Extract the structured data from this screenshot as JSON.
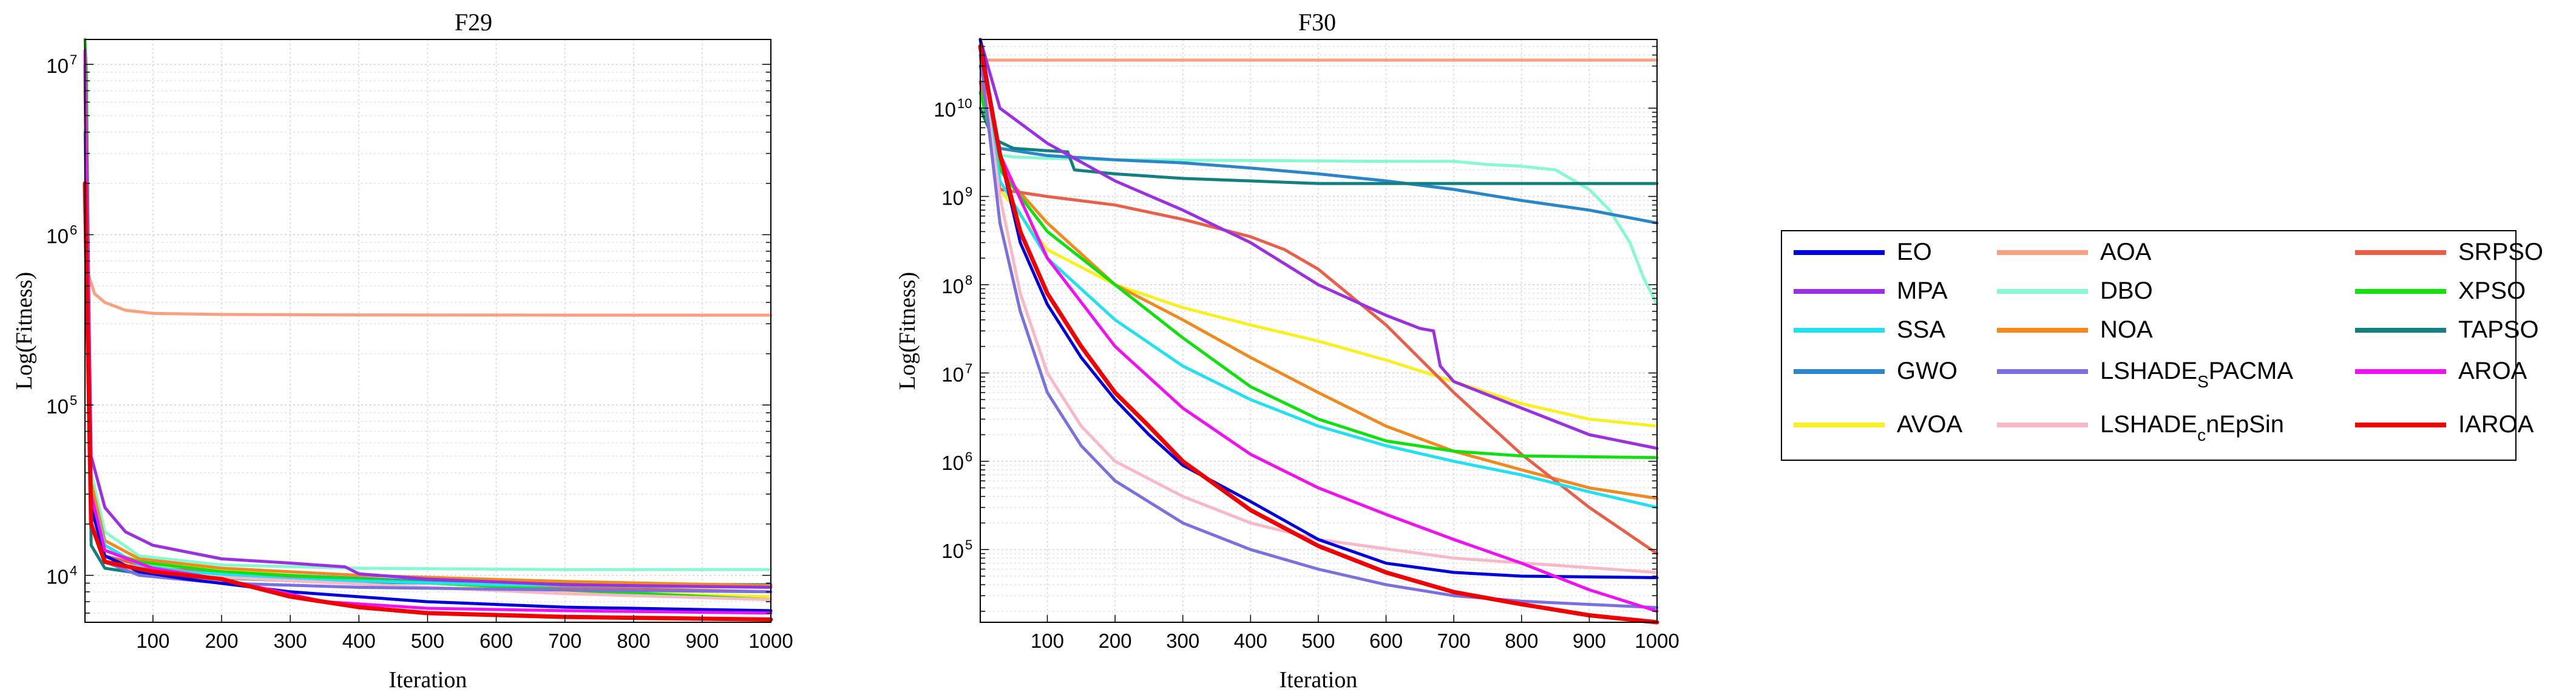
{
  "legend": {
    "entries": [
      {
        "name": "EO",
        "color": "#0000dd"
      },
      {
        "name": "MPA",
        "color": "#9b30e0"
      },
      {
        "name": "SSA",
        "color": "#22e0f0"
      },
      {
        "name": "GWO",
        "color": "#2a86c8"
      },
      {
        "name": "AVOA",
        "color": "#f8f020"
      },
      {
        "name": "AOA",
        "color": "#f8a080"
      },
      {
        "name": "DBO",
        "color": "#88f8d0"
      },
      {
        "name": "NOA",
        "color": "#f08a20"
      },
      {
        "name": "LSHADE",
        "sub": "S",
        "suffix": "PACMA",
        "color": "#7a70e0"
      },
      {
        "name": "LSHADE",
        "sub": "c",
        "suffix": "nEpSin",
        "color": "#f8b8c8"
      },
      {
        "name": "SRPSO",
        "color": "#e8604a"
      },
      {
        "name": "XPSO",
        "color": "#10e010"
      },
      {
        "name": "TAPSO",
        "color": "#128080"
      },
      {
        "name": "AROA",
        "color": "#f010f0"
      },
      {
        "name": "IAROA",
        "color": "#f00000"
      }
    ]
  },
  "chart_data": [
    {
      "type": "line",
      "title": "F29",
      "xlabel": "Iteration",
      "ylabel": "Log(Fitness)",
      "yscale": "log",
      "xlim": [
        1,
        1000
      ],
      "ylim": [
        5300,
        14000000
      ],
      "grid": true,
      "x_ticks": [
        100,
        200,
        300,
        400,
        500,
        600,
        700,
        800,
        900,
        1000
      ],
      "y_ticks": [
        {
          "value": 10000,
          "label": "10",
          "exp": "4"
        },
        {
          "value": 100000,
          "label": "10",
          "exp": "5"
        },
        {
          "value": 1000000,
          "label": "10",
          "exp": "6"
        },
        {
          "value": 10000000,
          "label": "10",
          "exp": "7"
        }
      ],
      "series": [
        {
          "name": "EO",
          "x": [
            1,
            10,
            30,
            80,
            150,
            300,
            500,
            700,
            1000
          ],
          "y": [
            10000000,
            25000,
            13000,
            10500,
            9500,
            8000,
            7000,
            6500,
            6200
          ]
        },
        {
          "name": "MPA",
          "x": [
            1,
            10,
            30,
            60,
            100,
            200,
            300,
            380,
            400,
            500,
            700,
            1000
          ],
          "y": [
            12000000,
            50000,
            25000,
            18000,
            15000,
            12500,
            11800,
            11200,
            10200,
            9500,
            8800,
            8500
          ]
        },
        {
          "name": "SSA",
          "x": [
            1,
            10,
            30,
            80,
            150,
            300,
            600,
            1000
          ],
          "y": [
            9000000,
            30000,
            15000,
            11500,
            10500,
            9500,
            8800,
            8500
          ]
        },
        {
          "name": "GWO",
          "x": [
            1,
            10,
            30,
            100,
            300,
            500,
            700,
            1000
          ],
          "y": [
            9000000,
            25000,
            13000,
            11000,
            10000,
            9200,
            8800,
            8600
          ]
        },
        {
          "name": "AVOA",
          "x": [
            1,
            10,
            30,
            100,
            300,
            500,
            700,
            1000
          ],
          "y": [
            8000000,
            30000,
            14000,
            11500,
            10000,
            9000,
            8000,
            7500
          ]
        },
        {
          "name": "AOA",
          "x": [
            1,
            5,
            15,
            30,
            60,
            100,
            200,
            400,
            700,
            1000
          ],
          "y": [
            11000000,
            600000,
            450000,
            400000,
            360000,
            345000,
            340000,
            338000,
            337000,
            337000
          ]
        },
        {
          "name": "DBO",
          "x": [
            1,
            10,
            30,
            80,
            200,
            400,
            700,
            1000
          ],
          "y": [
            12000000,
            40000,
            18000,
            13000,
            11500,
            11000,
            10800,
            10800
          ]
        },
        {
          "name": "NOA",
          "x": [
            1,
            10,
            30,
            80,
            200,
            400,
            700,
            1000
          ],
          "y": [
            7000000,
            35000,
            16000,
            12500,
            11000,
            10000,
            9200,
            8700
          ]
        },
        {
          "name": "LSHADE_S PACMA",
          "x": [
            1,
            10,
            30,
            80,
            200,
            400,
            700,
            1000
          ],
          "y": [
            4000000,
            20000,
            12000,
            10000,
            9000,
            8500,
            8200,
            8000
          ]
        },
        {
          "name": "LSHADE_c nEpSin",
          "x": [
            1,
            10,
            30,
            100,
            300,
            500,
            700,
            1000
          ],
          "y": [
            5000000,
            20000,
            12000,
            10200,
            9300,
            8500,
            7800,
            7200
          ]
        },
        {
          "name": "SRPSO",
          "x": [
            1,
            10,
            30,
            100,
            300,
            500,
            700,
            1000
          ],
          "y": [
            8000000,
            25000,
            13000,
            11000,
            9800,
            9000,
            8500,
            8000
          ]
        },
        {
          "name": "XPSO",
          "x": [
            1,
            3,
            10,
            30,
            80,
            200,
            400,
            700,
            1000
          ],
          "y": [
            14000000,
            9000000,
            25000,
            14000,
            12000,
            10500,
            9500,
            8200,
            7200
          ]
        },
        {
          "name": "TAPSO",
          "x": [
            1,
            10,
            30,
            100,
            300,
            500,
            700,
            1000
          ],
          "y": [
            5000000,
            15000,
            11000,
            10000,
            9300,
            9000,
            8900,
            8800
          ]
        },
        {
          "name": "AROA",
          "x": [
            1,
            10,
            30,
            100,
            200,
            350,
            500,
            700,
            1000
          ],
          "y": [
            12000000,
            30000,
            14000,
            11000,
            9500,
            7000,
            6400,
            6200,
            6000
          ]
        },
        {
          "name": "IAROA",
          "x": [
            1,
            10,
            30,
            100,
            200,
            300,
            400,
            500,
            700,
            1000
          ],
          "y": [
            2000000,
            20000,
            12000,
            10500,
            9500,
            7500,
            6500,
            6000,
            5700,
            5500
          ]
        }
      ]
    },
    {
      "type": "line",
      "title": "F30",
      "xlabel": "Iteration",
      "ylabel": "Log(Fitness)",
      "yscale": "log",
      "xlim": [
        1,
        1000
      ],
      "ylim": [
        15000,
        60000000000
      ],
      "grid": true,
      "x_ticks": [
        100,
        200,
        300,
        400,
        500,
        600,
        700,
        800,
        900,
        1000
      ],
      "y_ticks": [
        {
          "value": 100000,
          "label": "10",
          "exp": "5"
        },
        {
          "value": 1000000,
          "label": "10",
          "exp": "6"
        },
        {
          "value": 10000000,
          "label": "10",
          "exp": "7"
        },
        {
          "value": 100000000,
          "label": "10",
          "exp": "8"
        },
        {
          "value": 1000000000,
          "label": "10",
          "exp": "9"
        },
        {
          "value": 10000000000,
          "label": "10",
          "exp": "10"
        }
      ],
      "series": [
        {
          "name": "EO",
          "x": [
            1,
            30,
            60,
            100,
            150,
            200,
            250,
            300,
            400,
            500,
            600,
            700,
            800,
            1000
          ],
          "y": [
            60000000000,
            3000000000,
            300000000,
            60000000,
            15000000,
            5000000,
            2000000,
            900000,
            350000,
            130000,
            70000,
            55000,
            50000,
            48000
          ]
        },
        {
          "name": "MPA",
          "x": [
            1,
            30,
            100,
            200,
            300,
            400,
            500,
            600,
            650,
            670,
            680,
            700,
            800,
            900,
            1000
          ],
          "y": [
            60000000000,
            10000000000,
            4000000000,
            1500000000,
            700000000,
            300000000,
            100000000,
            45000000,
            32000000,
            30000000,
            12000000,
            8000000,
            4000000,
            2000000,
            1400000
          ]
        },
        {
          "name": "SSA",
          "x": [
            1,
            30,
            100,
            200,
            300,
            400,
            500,
            600,
            700,
            800,
            900,
            1000
          ],
          "y": [
            50000000000,
            1500000000,
            200000000,
            40000000,
            12000000,
            5000000,
            2500000,
            1500000,
            1000000,
            700000,
            450000,
            300000
          ]
        },
        {
          "name": "GWO",
          "x": [
            1,
            30,
            100,
            200,
            300,
            400,
            500,
            600,
            700,
            800,
            900,
            1000
          ],
          "y": [
            30000000000,
            3500000000,
            2900000000,
            2600000000,
            2400000000,
            2100000000,
            1800000000,
            1500000000,
            1200000000,
            900000000,
            700000000,
            500000000
          ]
        },
        {
          "name": "AVOA",
          "x": [
            1,
            30,
            100,
            200,
            300,
            400,
            500,
            600,
            700,
            800,
            900,
            1000
          ],
          "y": [
            40000000000,
            1200000000,
            250000000,
            100000000,
            55000000,
            35000000,
            23000000,
            14000000,
            8000000,
            4500000,
            3000000,
            2500000
          ]
        },
        {
          "name": "AOA",
          "x": [
            1,
            10,
            50,
            200,
            500,
            800,
            1000
          ],
          "y": [
            60000000000,
            35000000000,
            35000000000,
            35000000000,
            35000000000,
            35000000000,
            35000000000
          ]
        },
        {
          "name": "DBO",
          "x": [
            1,
            20,
            50,
            100,
            200,
            600,
            700,
            750,
            800,
            850,
            900,
            930,
            960,
            980,
            1000
          ],
          "y": [
            20000000000,
            3000000000,
            2800000000,
            2700000000,
            2600000000,
            2500000000,
            2500000000,
            2300000000,
            2200000000,
            2000000000,
            1200000000,
            700000000,
            300000000,
            120000000,
            60000000
          ]
        },
        {
          "name": "NOA",
          "x": [
            1,
            30,
            100,
            200,
            300,
            400,
            500,
            600,
            700,
            800,
            900,
            1000
          ],
          "y": [
            40000000000,
            2000000000,
            500000000,
            100000000,
            40000000,
            15000000,
            6000000,
            2500000,
            1300000,
            800000,
            500000,
            380000
          ]
        },
        {
          "name": "LSHADE_S PACMA",
          "x": [
            1,
            30,
            60,
            100,
            150,
            200,
            300,
            400,
            500,
            600,
            700,
            800,
            1000
          ],
          "y": [
            40000000000,
            500000000,
            50000000,
            6000000,
            1500000,
            600000,
            200000,
            100000,
            60000,
            40000,
            30000,
            26000,
            22000
          ]
        },
        {
          "name": "LSHADE_c nEpSin",
          "x": [
            1,
            30,
            60,
            100,
            150,
            200,
            300,
            400,
            500,
            700,
            1000
          ],
          "y": [
            40000000000,
            1000000000,
            80000000,
            10000000,
            2500000,
            1000000,
            400000,
            200000,
            130000,
            80000,
            55000
          ]
        },
        {
          "name": "SRPSO",
          "x": [
            1,
            30,
            100,
            200,
            300,
            400,
            450,
            500,
            600,
            700,
            800,
            900,
            1000
          ],
          "y": [
            20000000000,
            1200000000,
            1000000000,
            800000000,
            550000000,
            350000000,
            250000000,
            150000000,
            35000000,
            6000000,
            1200000,
            300000,
            90000
          ]
        },
        {
          "name": "XPSO",
          "x": [
            1,
            30,
            100,
            200,
            300,
            400,
            500,
            600,
            700,
            800,
            1000
          ],
          "y": [
            15000000000,
            2000000000,
            400000000,
            100000000,
            25000000,
            7000000,
            3000000,
            1700000,
            1300000,
            1150000,
            1100000
          ]
        },
        {
          "name": "TAPSO",
          "x": [
            1,
            20,
            50,
            100,
            130,
            140,
            200,
            300,
            400,
            500,
            1000
          ],
          "y": [
            10000000000,
            4500000000,
            3500000000,
            3300000000,
            3200000000,
            2000000000,
            1800000000,
            1600000000,
            1500000000,
            1400000000,
            1400000000
          ]
        },
        {
          "name": "AROA",
          "x": [
            1,
            30,
            100,
            200,
            300,
            400,
            500,
            600,
            700,
            800,
            900,
            1000
          ],
          "y": [
            50000000000,
            3000000000,
            200000000,
            20000000,
            4000000,
            1200000,
            500000,
            250000,
            130000,
            70000,
            35000,
            20000
          ]
        },
        {
          "name": "IAROA",
          "x": [
            1,
            30,
            60,
            100,
            150,
            200,
            250,
            300,
            400,
            500,
            600,
            700,
            800,
            900,
            1000
          ],
          "y": [
            50000000000,
            3000000000,
            400000000,
            80000000,
            20000000,
            6000000,
            2500000,
            1000000,
            280000,
            110000,
            55000,
            33000,
            24000,
            18000,
            15000
          ]
        }
      ]
    }
  ]
}
